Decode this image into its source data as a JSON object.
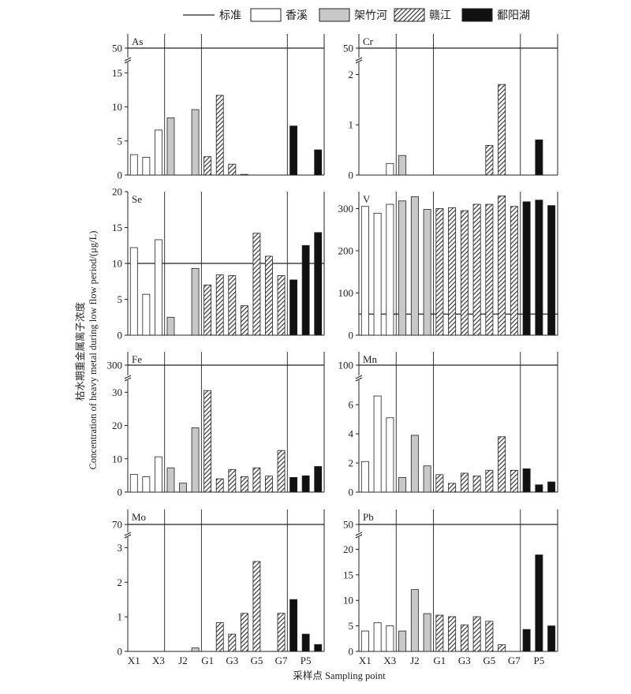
{
  "chart_data": {
    "type": "bar",
    "legend": {
      "placement": "top",
      "entries": [
        {
          "key": "std",
          "label": "标准"
        },
        {
          "key": "xiangxi",
          "label": "香溪",
          "fill": "#ffffff"
        },
        {
          "key": "jiazhu",
          "label": "架竹河",
          "fill": "#c8c8c8"
        },
        {
          "key": "ganjiang",
          "label": "赣江",
          "fill": "hatch"
        },
        {
          "key": "poyang",
          "label": "鄱阳湖",
          "fill": "#111111"
        }
      ]
    },
    "colors": {
      "xiangxi": "#ffffff",
      "jiazhu": "#c8c8c8",
      "ganjiang": "#8a8a8a",
      "poyang": "#111111",
      "line": "#222222"
    },
    "ylabel_cn": "枯水期重金属离子浓度",
    "ylabel_en": "Concentration of heavy metal during low flow period/(μg/L)",
    "xlabel": "采样点 Sampling point",
    "x_tick_labels": [
      "X1",
      "X3",
      "J2",
      "G1",
      "G3",
      "G5",
      "G7",
      "P5"
    ],
    "site_groups": [
      "xiangxi",
      "xiangxi",
      "xiangxi",
      "jiazhu",
      "jiazhu",
      "jiazhu",
      "ganjiang",
      "ganjiang",
      "ganjiang",
      "ganjiang",
      "ganjiang",
      "ganjiang",
      "ganjiang",
      "poyang",
      "poyang",
      "poyang"
    ],
    "panels": [
      {
        "name": "As",
        "label": "As",
        "standard": 50,
        "standard_label": "50",
        "ylim": [
          0,
          15.5
        ],
        "yticks": [
          0,
          5,
          10,
          15
        ],
        "values": [
          3,
          2.6,
          6.6,
          8.4,
          0,
          9.6,
          2.7,
          11.7,
          1.6,
          0.1,
          0,
          0,
          0,
          7.2,
          0,
          3.7
        ]
      },
      {
        "name": "Cr",
        "label": "Cr",
        "standard": 50,
        "standard_label": "50",
        "ylim": [
          0,
          2.1
        ],
        "yticks": [
          0,
          1,
          2
        ],
        "values": [
          0,
          0,
          0.23,
          0.39,
          0,
          0,
          0,
          0,
          0,
          0,
          0.59,
          1.8,
          0,
          0,
          0.7,
          0
        ]
      },
      {
        "name": "Se",
        "label": "Se",
        "standard": 10,
        "standard_label": "",
        "ylim": [
          0,
          20
        ],
        "yticks": [
          0,
          5,
          10,
          15,
          20
        ],
        "values": [
          12.2,
          5.7,
          13.3,
          2.5,
          0,
          9.3,
          7,
          8.4,
          8.3,
          4.1,
          14.2,
          11,
          8.3,
          7.7,
          12.5,
          14.3
        ]
      },
      {
        "name": "V",
        "label": "V",
        "standard": 50,
        "standard_label": "",
        "ylim": [
          0,
          340
        ],
        "yticks": [
          0,
          100,
          200,
          300
        ],
        "values": [
          305,
          289,
          310,
          318,
          328,
          298,
          300,
          302,
          295,
          310,
          310,
          330,
          305,
          316,
          320,
          307
        ]
      },
      {
        "name": "Fe",
        "label": "Fe",
        "standard": 300,
        "standard_label": "300",
        "ylim": [
          0,
          31.5
        ],
        "yticks": [
          0,
          10,
          20,
          30
        ],
        "values": [
          5.3,
          4.6,
          10.6,
          7.3,
          2.7,
          19.3,
          30.5,
          4,
          6.8,
          4.6,
          7.3,
          4.8,
          12.5,
          4.4,
          4.9,
          7.7
        ]
      },
      {
        "name": "Mn",
        "label": "Mn",
        "standard": 100,
        "standard_label": "100",
        "ylim": [
          0,
          7.2
        ],
        "yticks": [
          0,
          2,
          4,
          6
        ],
        "values": [
          2.1,
          6.6,
          5.1,
          1,
          3.9,
          1.8,
          1.2,
          0.6,
          1.3,
          1.1,
          1.5,
          3.8,
          1.5,
          1.6,
          0.5,
          0.7
        ]
      },
      {
        "name": "Mo",
        "label": "Mo",
        "standard": 70,
        "standard_label": "70",
        "ylim": [
          0,
          3.1
        ],
        "yticks": [
          0,
          1,
          2,
          3
        ],
        "values": [
          0,
          0,
          0,
          0,
          0,
          0.1,
          0,
          0.83,
          0.5,
          1.1,
          2.6,
          0,
          1.1,
          1.5,
          0.5,
          0.2
        ]
      },
      {
        "name": "Pb",
        "label": "Pb",
        "standard": 50,
        "standard_label": "50",
        "ylim": [
          0,
          21
        ],
        "yticks": [
          0,
          5,
          10,
          15,
          20
        ],
        "values": [
          4,
          5.6,
          5,
          4,
          12.1,
          7.4,
          7.1,
          6.8,
          5.2,
          6.8,
          5.9,
          1.3,
          0,
          4.3,
          18.9,
          5
        ]
      }
    ]
  }
}
